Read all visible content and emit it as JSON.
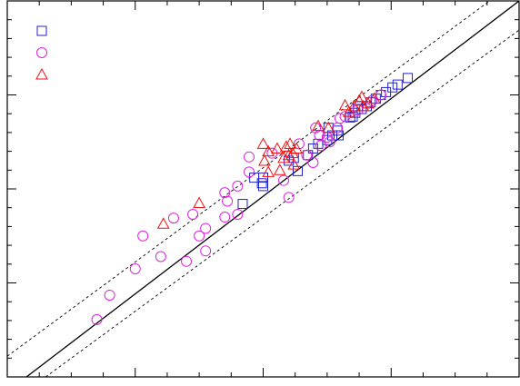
{
  "chart_data": {
    "type": "scatter",
    "xlim": [
      0,
      4
    ],
    "ylim": [
      0,
      4
    ],
    "xticks": [
      0,
      1,
      2,
      3,
      4
    ],
    "yticks": [
      0,
      1,
      2,
      3,
      4
    ],
    "xticks_minor": [
      0.25,
      0.5,
      0.75,
      1.25,
      1.5,
      1.75,
      2.25,
      2.5,
      2.75,
      3.25,
      3.5,
      3.75
    ],
    "yticks_minor": [
      0.2,
      0.4,
      0.6,
      0.8,
      1.2,
      1.4,
      1.6,
      1.8,
      2.2,
      2.4,
      2.6,
      2.8,
      3.2,
      3.4,
      3.6,
      3.8
    ],
    "legend": "upper left",
    "reference_lines": [
      {
        "x": [
          0.15,
          4
        ],
        "y": [
          0,
          4
        ],
        "style": "solid",
        "color": "#000000"
      },
      {
        "x": [
          0,
          3.77
        ],
        "y": [
          0.22,
          4
        ],
        "style": "dashed",
        "color": "#000000"
      },
      {
        "x": [
          0.3,
          4
        ],
        "y": [
          0,
          3.69
        ],
        "style": "dashed",
        "color": "#000000"
      }
    ],
    "series": [
      {
        "marker": "square",
        "color": "#2222cc",
        "x": [
          3.13,
          3.05,
          3.01,
          2.96,
          2.92,
          2.88,
          2.84,
          2.81,
          2.77,
          2.72,
          2.7,
          2.58,
          2.54,
          2.5,
          2.43,
          2.39,
          2.35,
          2.24,
          2.2,
          2.27,
          2.0,
          2.0,
          1.99,
          1.93,
          1.84,
          2.51,
          2.68,
          2.59,
          2.74
        ],
        "values": [
          3.18,
          3.11,
          3.08,
          3.03,
          3.0,
          2.96,
          2.92,
          2.88,
          2.85,
          2.81,
          2.77,
          2.62,
          2.57,
          2.52,
          2.48,
          2.43,
          2.36,
          2.33,
          2.3,
          2.19,
          2.12,
          2.03,
          2.06,
          2.12,
          1.84,
          2.65,
          2.76,
          2.57,
          2.88
        ]
      },
      {
        "marker": "circle",
        "color": "#dd22dd",
        "x": [
          0.7,
          0.8,
          1.0,
          1.2,
          1.4,
          1.55,
          1.5,
          1.55,
          1.7,
          1.8,
          1.72,
          1.7,
          1.8,
          1.89,
          1.45,
          1.3,
          1.06,
          1.89,
          2.2,
          2.16,
          2.39,
          2.34,
          2.07,
          2.28,
          2.45,
          2.5,
          2.58,
          2.6,
          2.64,
          2.41,
          2.44,
          2.74,
          2.85,
          2.92,
          2.52
        ],
        "values": [
          0.61,
          0.87,
          1.15,
          1.28,
          1.23,
          1.34,
          1.5,
          1.58,
          1.7,
          1.73,
          1.87,
          1.96,
          2.03,
          2.18,
          1.73,
          1.69,
          1.5,
          2.34,
          1.91,
          2.09,
          2.28,
          2.36,
          2.38,
          2.48,
          2.46,
          2.55,
          2.65,
          2.75,
          2.77,
          2.65,
          2.57,
          2.84,
          2.94,
          3.0,
          2.5
        ]
      },
      {
        "marker": "triangle",
        "color": "#ee1111",
        "x": [
          1.22,
          1.5,
          2.0,
          2.01,
          2.04,
          2.11,
          2.13,
          2.18,
          2.16,
          2.23,
          2.24,
          2.21,
          2.2,
          2.43,
          2.51,
          2.64,
          2.71,
          2.75,
          2.78,
          2.82,
          2.87,
          2.77,
          2.67,
          2.26,
          2.04
        ],
        "values": [
          1.63,
          1.85,
          2.48,
          2.3,
          2.4,
          2.43,
          2.2,
          2.45,
          2.33,
          2.38,
          2.26,
          2.48,
          2.36,
          2.67,
          2.65,
          2.89,
          2.88,
          2.94,
          2.88,
          2.91,
          2.96,
          2.98,
          2.82,
          2.43,
          2.18
        ]
      }
    ]
  }
}
